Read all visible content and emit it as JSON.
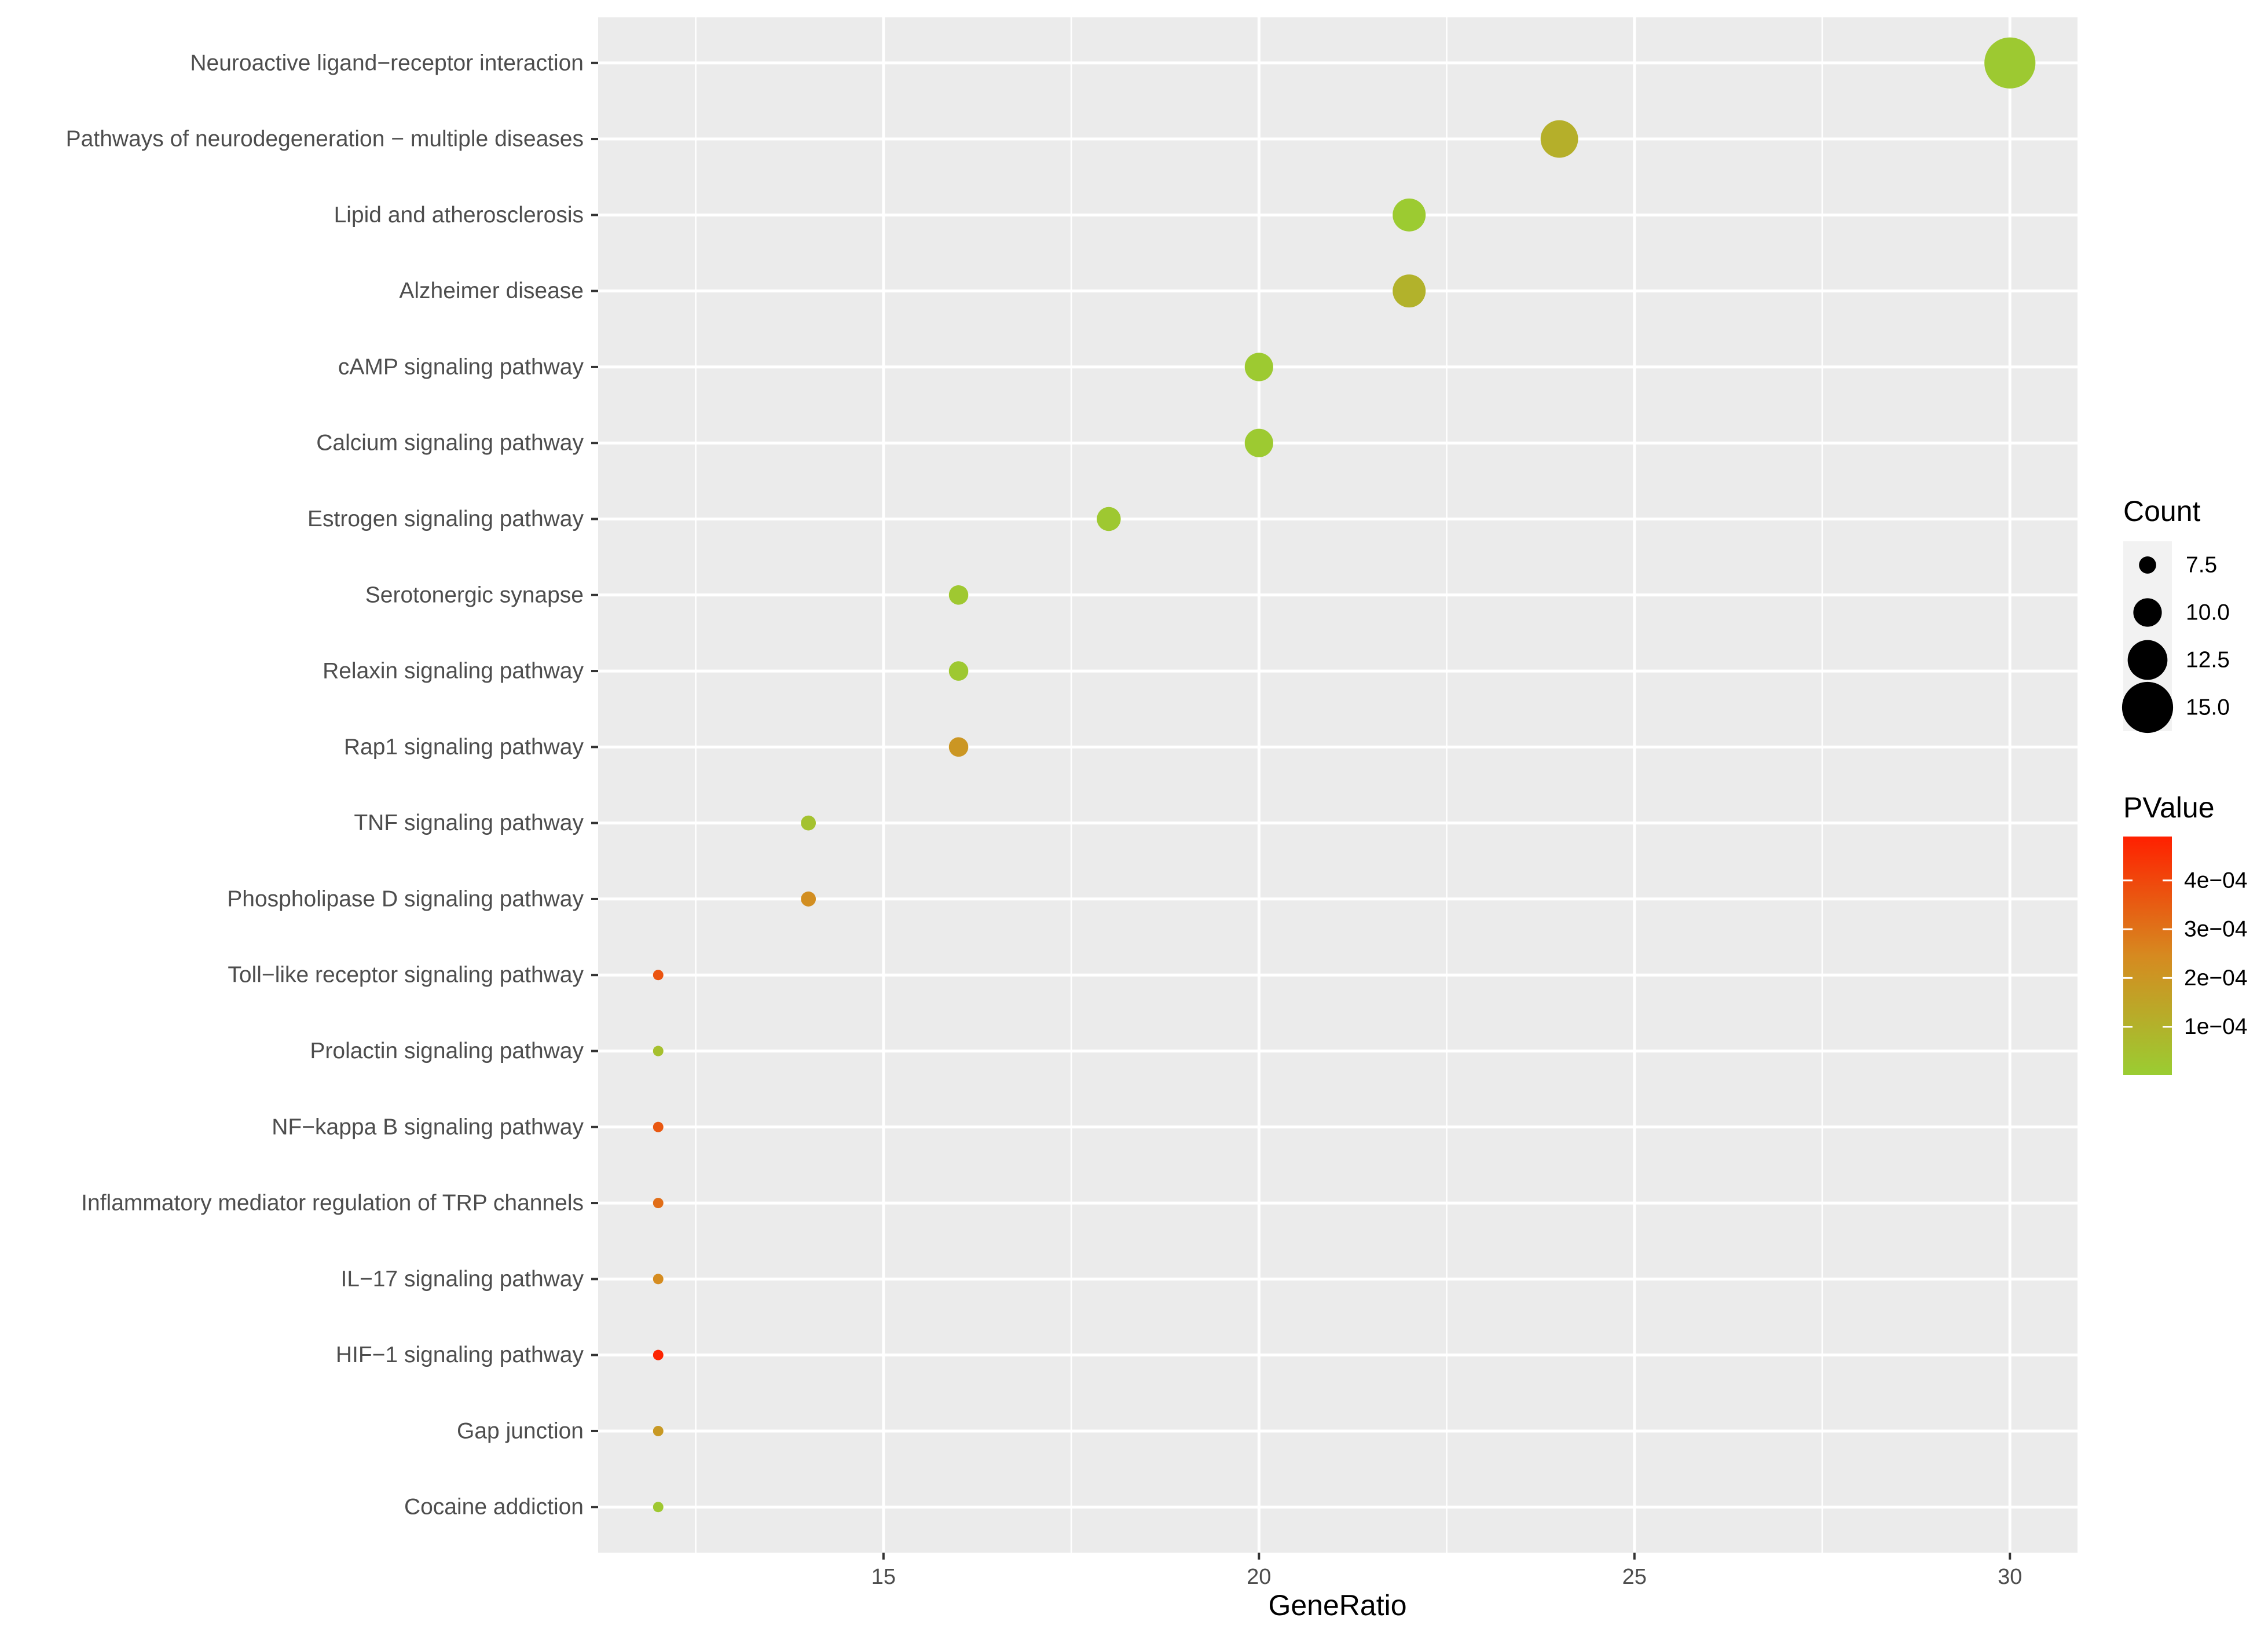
{
  "chart_data": {
    "type": "scatter",
    "title": "",
    "xlabel": "GeneRatio",
    "ylabel": "",
    "xlim": [
      11.2,
      30.9
    ],
    "x_ticks": [
      15,
      20,
      25,
      30
    ],
    "x_tick_labels": [
      "15",
      "20",
      "25",
      "30"
    ],
    "grid": true,
    "categories": [
      "Neuroactive ligand−receptor interaction",
      "Pathways of neurodegeneration − multiple diseases",
      "Lipid and atherosclerosis",
      "Alzheimer disease",
      "cAMP signaling pathway",
      "Calcium signaling pathway",
      "Estrogen signaling pathway",
      "Serotonergic synapse",
      "Relaxin signaling pathway",
      "Rap1 signaling pathway",
      "TNF signaling pathway",
      "Phospholipase D signaling pathway",
      "Toll−like receptor signaling pathway",
      "Prolactin signaling pathway",
      "NF−kappa B signaling pathway",
      "Inflammatory mediator regulation of TRP channels",
      "IL−17 signaling pathway",
      "HIF−1 signaling pathway",
      "Gap junction",
      "Cocaine addiction"
    ],
    "gene_ratio": [
      30,
      24,
      22,
      22,
      20,
      20,
      18,
      16,
      16,
      16,
      14,
      14,
      12,
      12,
      12,
      12,
      12,
      12,
      12,
      12
    ],
    "count": [
      15,
      12,
      11,
      11,
      10,
      10,
      9,
      8,
      8,
      8,
      7,
      7,
      6,
      6,
      6,
      6,
      6,
      6,
      6,
      6
    ],
    "pvalue": [
      1.5e-05,
      0.00011,
      1e-05,
      0.0001,
      1.2e-05,
      1.3e-05,
      1.8e-05,
      2e-05,
      1.9e-05,
      0.0002,
      4e-05,
      0.00023,
      0.00037,
      5e-05,
      0.00036,
      0.00031,
      0.00024,
      0.00048,
      0.00019,
      2e-05
    ],
    "size_legend": {
      "title": "Count",
      "values": [
        7.5,
        10.0,
        12.5,
        15.0
      ],
      "labels": [
        "7.5",
        "10.0",
        "12.5",
        "15.0"
      ]
    },
    "color_legend": {
      "title": "PValue",
      "range": [
        1e-06,
        0.00049
      ],
      "ticks": [
        0.0001,
        0.0002,
        0.0003,
        0.0004
      ],
      "tick_labels": [
        "1e−04",
        "2e−04",
        "3e−04",
        "4e−04"
      ],
      "low_color": "#9acd32",
      "high_color": "#ff2000"
    },
    "colors": {
      "panel_bg": "#ebebeb",
      "grid": "#ffffff"
    }
  }
}
